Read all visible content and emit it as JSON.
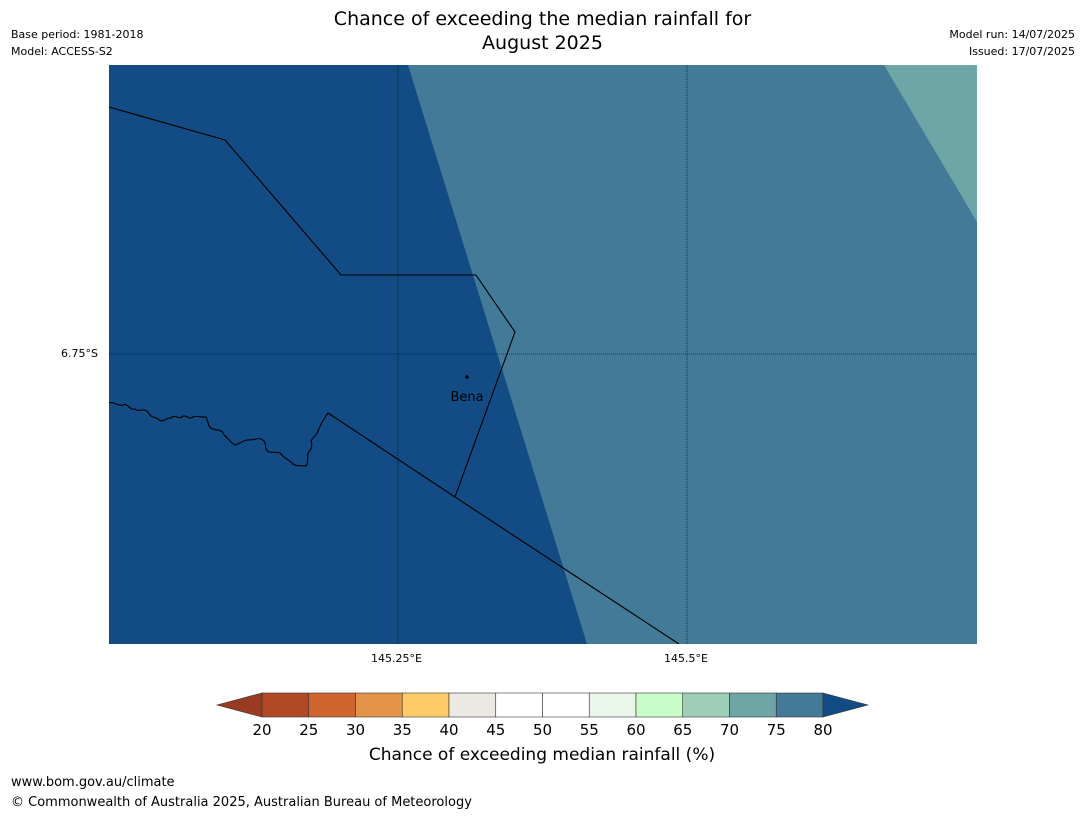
{
  "header": {
    "title_line1": "Chance of exceeding the median rainfall for",
    "title_line2": "August 2025",
    "base_period": "Base period: 1981-2018",
    "model": "Model: ACCESS-S2",
    "model_run": "Model run: 14/07/2025",
    "issued": "Issued: 17/07/2025"
  },
  "map": {
    "latitude_labels": [
      "6.75°S"
    ],
    "longitude_labels": [
      "145.25°E",
      "145.5°E"
    ],
    "place": {
      "name": "Bena"
    },
    "colors": {
      "dark_blue": "#134c85",
      "mid_blue": "#427a98",
      "teal": "#6ea5a7",
      "grid": "#000000"
    },
    "regions": [
      {
        "category": "≥80%",
        "color": "#134c85"
      },
      {
        "category": "75-80%",
        "color": "#427a98"
      },
      {
        "category": "70-75%",
        "color": "#6ea5a7"
      }
    ]
  },
  "colorbar": {
    "title": "Chance of exceeding median rainfall (%)",
    "ticks": [
      "20",
      "25",
      "30",
      "35",
      "40",
      "45",
      "50",
      "55",
      "60",
      "65",
      "70",
      "75",
      "80"
    ],
    "low_extend_color": "#9a3a22",
    "high_extend_color": "#134c85",
    "bins": [
      {
        "range": "20-25",
        "color": "#b14a24"
      },
      {
        "range": "25-30",
        "color": "#d06530"
      },
      {
        "range": "30-35",
        "color": "#e39448"
      },
      {
        "range": "35-40",
        "color": "#fecb66"
      },
      {
        "range": "40-45",
        "color": "#ece8e4"
      },
      {
        "range": "45-50",
        "color": "#ffffff"
      },
      {
        "range": "50-55",
        "color": "#ffffff"
      },
      {
        "range": "55-60",
        "color": "#eaf6ea"
      },
      {
        "range": "60-65",
        "color": "#c8fcc8"
      },
      {
        "range": "65-70",
        "color": "#9ecfb8"
      },
      {
        "range": "70-75",
        "color": "#6ea5a7"
      },
      {
        "range": "75-80",
        "color": "#427a98"
      }
    ]
  },
  "footer": {
    "url": "www.bom.gov.au/climate",
    "copyright": "© Commonwealth of Australia 2025, Australian Bureau of Meteorology"
  }
}
